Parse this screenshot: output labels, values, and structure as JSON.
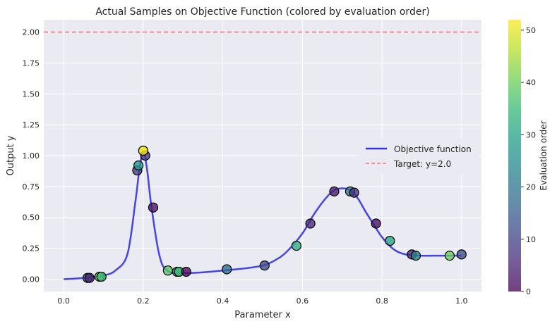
{
  "chart_data": {
    "type": "scatter",
    "title": "Actual Samples on Objective Function (colored by evaluation order)",
    "xlabel": "Parameter x",
    "ylabel": "Output y",
    "xlim": [
      -0.05,
      1.05
    ],
    "ylim": [
      -0.1,
      2.1
    ],
    "xticks": [
      0.0,
      0.2,
      0.4,
      0.6,
      0.8,
      1.0
    ],
    "xtick_labels": [
      "0.0",
      "0.2",
      "0.4",
      "0.6",
      "0.8",
      "1.0"
    ],
    "yticks": [
      0.0,
      0.25,
      0.5,
      0.75,
      1.0,
      1.25,
      1.5,
      1.75,
      2.0
    ],
    "ytick_labels": [
      "0.00",
      "0.25",
      "0.50",
      "0.75",
      "1.00",
      "1.25",
      "1.50",
      "1.75",
      "2.00"
    ],
    "grid": true,
    "legend_position": "center-right",
    "legend": [
      {
        "label": "Objective function",
        "style": "line",
        "color": "#3333e6"
      },
      {
        "label": "Target: y=2.0",
        "style": "dashed",
        "color": "#ff7070"
      }
    ],
    "target_line": {
      "y": 2.0,
      "color": "#ff7070"
    },
    "objective_function": {
      "name": "Objective function",
      "color": "#3333e6",
      "x": [
        0.0,
        0.05,
        0.1,
        0.13,
        0.16,
        0.18,
        0.19,
        0.2,
        0.21,
        0.22,
        0.24,
        0.26,
        0.3,
        0.35,
        0.4,
        0.45,
        0.5,
        0.53,
        0.56,
        0.6,
        0.63,
        0.66,
        0.68,
        0.7,
        0.72,
        0.74,
        0.76,
        0.78,
        0.8,
        0.83,
        0.86,
        0.9,
        0.95,
        1.0
      ],
      "y": [
        0.0,
        0.01,
        0.03,
        0.07,
        0.2,
        0.62,
        0.88,
        1.03,
        0.88,
        0.6,
        0.2,
        0.07,
        0.05,
        0.055,
        0.07,
        0.085,
        0.11,
        0.15,
        0.22,
        0.37,
        0.53,
        0.66,
        0.72,
        0.735,
        0.72,
        0.65,
        0.54,
        0.44,
        0.34,
        0.24,
        0.2,
        0.19,
        0.19,
        0.19
      ]
    },
    "samples": {
      "x": [
        0.06,
        0.065,
        0.09,
        0.095,
        0.185,
        0.188,
        0.2,
        0.205,
        0.225,
        0.262,
        0.285,
        0.29,
        0.308,
        0.41,
        0.505,
        0.585,
        0.62,
        0.68,
        0.72,
        0.73,
        0.785,
        0.82,
        0.875,
        0.885,
        0.97,
        1.0,
        0.2
      ],
      "y": [
        0.01,
        0.01,
        0.02,
        0.02,
        0.88,
        0.92,
        1.04,
        1.0,
        0.58,
        0.07,
        0.06,
        0.06,
        0.06,
        0.08,
        0.11,
        0.27,
        0.45,
        0.71,
        0.71,
        0.7,
        0.45,
        0.31,
        0.2,
        0.19,
        0.19,
        0.2,
        1.04
      ],
      "order": [
        14,
        5,
        40,
        35,
        10,
        28,
        45,
        8,
        3,
        38,
        30,
        36,
        1,
        18,
        12,
        33,
        6,
        4,
        22,
        7,
        2,
        30,
        5,
        25,
        40,
        12,
        52
      ],
      "marker_edge_color": "#000000"
    },
    "colorbar": {
      "label": "Evaluation order",
      "min": 0,
      "max": 52,
      "ticks": [
        0,
        10,
        20,
        30,
        40,
        50
      ],
      "tick_labels": [
        "0",
        "10",
        "20",
        "30",
        "40",
        "50"
      ],
      "colormap": "viridis"
    },
    "colors": {
      "axes_background": "#eaeaf2",
      "grid": "#ffffff"
    }
  }
}
